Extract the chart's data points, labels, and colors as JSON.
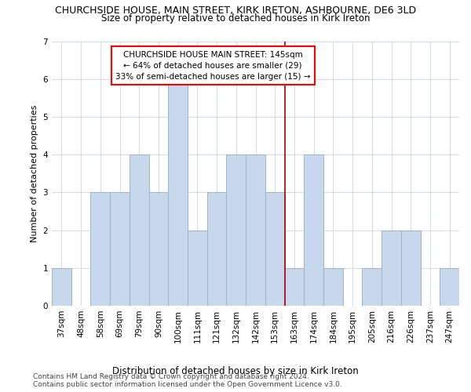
{
  "title": "CHURCHSIDE HOUSE, MAIN STREET, KIRK IRETON, ASHBOURNE, DE6 3LD",
  "subtitle": "Size of property relative to detached houses in Kirk Ireton",
  "xlabel_bottom": "Distribution of detached houses by size in Kirk Ireton",
  "ylabel": "Number of detached properties",
  "footer1": "Contains HM Land Registry data © Crown copyright and database right 2024.",
  "footer2": "Contains public sector information licensed under the Open Government Licence v3.0.",
  "categories": [
    "37sqm",
    "48sqm",
    "58sqm",
    "69sqm",
    "79sqm",
    "90sqm",
    "100sqm",
    "111sqm",
    "121sqm",
    "132sqm",
    "142sqm",
    "153sqm",
    "163sqm",
    "174sqm",
    "184sqm",
    "195sqm",
    "205sqm",
    "216sqm",
    "226sqm",
    "237sqm",
    "247sqm"
  ],
  "values": [
    1,
    0,
    3,
    3,
    4,
    3,
    6,
    2,
    3,
    4,
    4,
    3,
    1,
    4,
    1,
    0,
    1,
    2,
    2,
    0,
    1
  ],
  "bar_color": "#c8d8ec",
  "bar_edge_color": "#9ab4cc",
  "ylim": [
    0,
    7
  ],
  "yticks": [
    0,
    1,
    2,
    3,
    4,
    5,
    6,
    7
  ],
  "ref_line_x": 11.5,
  "annotation_text_line1": "CHURCHSIDE HOUSE MAIN STREET: 145sqm",
  "annotation_text_line2": "← 64% of detached houses are smaller (29)",
  "annotation_text_line3": "33% of semi-detached houses are larger (15) →",
  "background_color": "#ffffff",
  "grid_color": "#d0daea",
  "title_fontsize": 9.0,
  "subtitle_fontsize": 8.5,
  "tick_fontsize": 7.5,
  "ylabel_fontsize": 8.0,
  "annotation_fontsize": 7.5,
  "footer_fontsize": 6.5,
  "xlabel_fontsize": 8.5
}
